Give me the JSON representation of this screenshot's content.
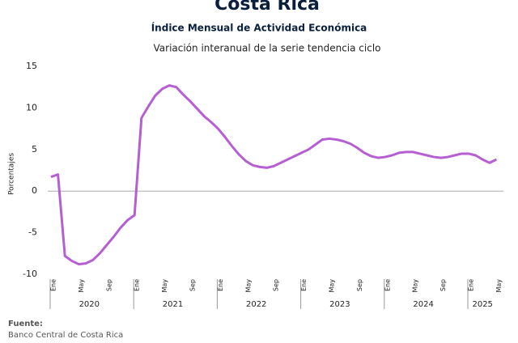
{
  "chart_data": {
    "type": "line",
    "title": "Costa Rica",
    "subtitle": "Índice Mensual de Actividad Económica",
    "description": "Variación interanual de la serie tendencia ciclo",
    "y_label": "Porcentajes",
    "categories": [
      "Ene",
      null,
      null,
      null,
      "May",
      null,
      null,
      null,
      "Sep",
      null,
      null,
      null,
      "Ene",
      null,
      null,
      null,
      "May",
      null,
      null,
      null,
      "Sep",
      null,
      null,
      null,
      "Ene",
      null,
      null,
      null,
      "May",
      null,
      null,
      null,
      "Sep",
      null,
      null,
      null,
      "Ene",
      null,
      null,
      null,
      "May",
      null,
      null,
      null,
      "Sep",
      null,
      null,
      null,
      "Ene",
      null,
      null,
      null,
      "May",
      null,
      null,
      null,
      "Sep",
      null,
      null,
      null,
      "Ene",
      null,
      null,
      null,
      "May"
    ],
    "years": [
      "2020",
      "2021",
      "2022",
      "2023",
      "2024",
      "2025"
    ],
    "series": [
      {
        "name": "Variación interanual",
        "color": "#b55fd3",
        "values": [
          1.7,
          2.0,
          -7.8,
          -8.4,
          -8.8,
          -8.7,
          -8.3,
          -7.5,
          -6.5,
          -5.5,
          -4.4,
          -3.5,
          -2.9,
          8.8,
          10.2,
          11.5,
          12.3,
          12.7,
          12.5,
          11.6,
          10.8,
          9.9,
          9.0,
          8.3,
          7.5,
          6.5,
          5.4,
          4.4,
          3.6,
          3.1,
          2.9,
          2.8,
          3.0,
          3.4,
          3.8,
          4.2,
          4.6,
          5.0,
          5.6,
          6.2,
          6.3,
          6.2,
          6.0,
          5.7,
          5.2,
          4.6,
          4.2,
          4.0,
          4.1,
          4.3,
          4.6,
          4.7,
          4.7,
          4.5,
          4.3,
          4.1,
          4.0,
          4.1,
          4.3,
          4.5,
          4.5,
          4.3,
          3.8,
          3.4,
          3.8
        ]
      }
    ],
    "ylim": [
      -10,
      15
    ],
    "yticks": [
      -10,
      -5,
      0,
      5,
      10,
      15
    ],
    "source_label": "Fuente:",
    "source": "Banco Central de Costa Rica"
  }
}
